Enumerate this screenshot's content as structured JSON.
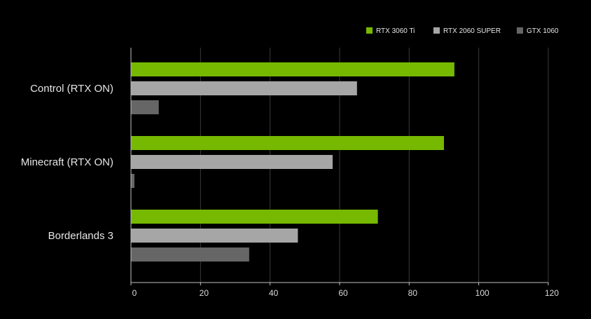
{
  "chart_data": {
    "type": "bar",
    "orientation": "horizontal",
    "categories": [
      "Control (RTX ON)",
      "Minecraft (RTX ON)",
      "Borderlands 3"
    ],
    "series": [
      {
        "name": "RTX 3060 Ti",
        "color": "#76b900",
        "values": [
          93,
          90,
          71
        ]
      },
      {
        "name": "RTX 2060 SUPER",
        "color": "#a6a6a6",
        "values": [
          65,
          58,
          48
        ]
      },
      {
        "name": "GTX 1060",
        "color": "#666666",
        "values": [
          8,
          1,
          34
        ]
      }
    ],
    "xlim": [
      0,
      120
    ],
    "xticks": [
      0,
      20,
      40,
      60,
      80,
      100,
      120
    ],
    "grid": "vertical",
    "legend": "top-right",
    "background": "#000000",
    "gridline_color": "#3a3a3a",
    "axis_color": "#bfbfbf",
    "text_color": "#e6e6e6"
  }
}
